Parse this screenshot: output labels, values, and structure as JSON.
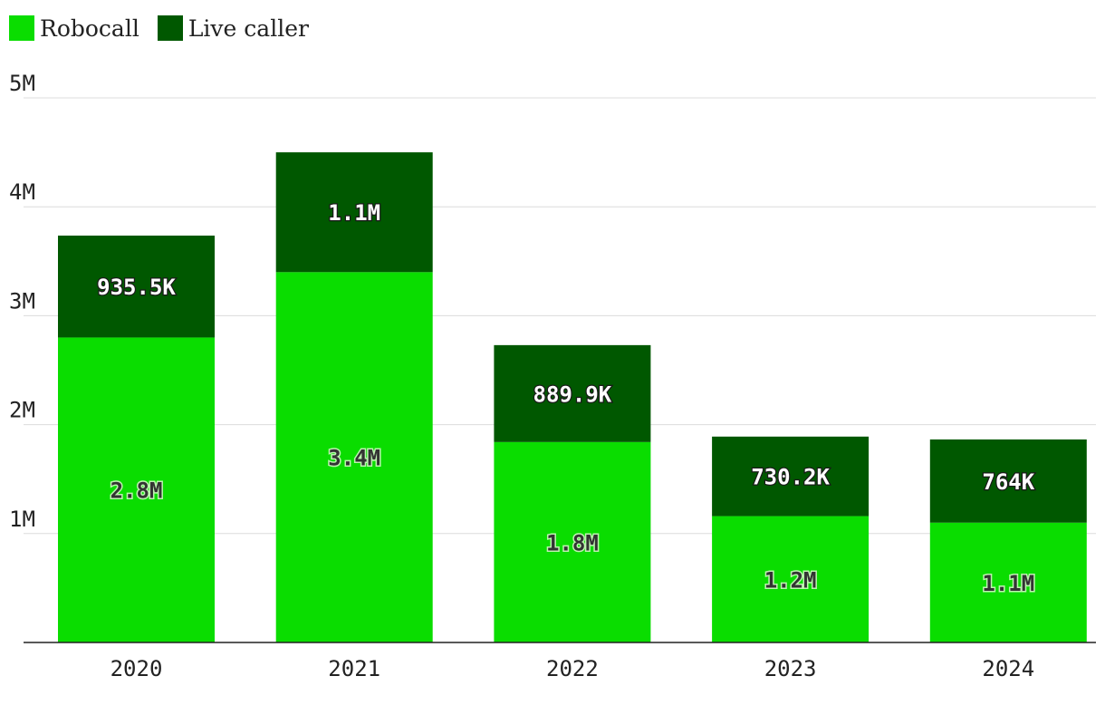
{
  "chart_data": {
    "type": "bar",
    "stacked": true,
    "categories": [
      "2020",
      "2021",
      "2022",
      "2023",
      "2024"
    ],
    "series": [
      {
        "name": "Robocall",
        "color": "#0add00",
        "values": [
          2800000,
          3400000,
          1840000,
          1160000,
          1100000
        ],
        "labels": [
          "2.8M",
          "3.4M",
          "1.8M",
          "1.2M",
          "1.1M"
        ]
      },
      {
        "name": "Live caller",
        "color": "#005800",
        "values": [
          935500,
          1100000,
          889900,
          730200,
          764000
        ],
        "labels": [
          "935.5K",
          "1.1M",
          "889.9K",
          "730.2K",
          "764K"
        ]
      }
    ],
    "yticks": [
      {
        "value": 1000000,
        "label": "1M"
      },
      {
        "value": 2000000,
        "label": "2M"
      },
      {
        "value": 3000000,
        "label": "3M"
      },
      {
        "value": 4000000,
        "label": "4M"
      },
      {
        "value": 5000000,
        "label": "5M"
      }
    ],
    "ylim": [
      0,
      5000000
    ],
    "grid": true,
    "legend_position": "top-left",
    "title": "",
    "xlabel": "",
    "ylabel": ""
  }
}
